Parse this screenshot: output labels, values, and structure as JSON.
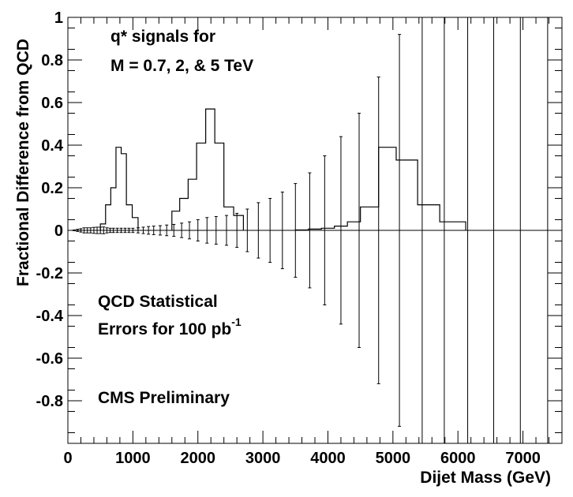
{
  "chart_data": {
    "type": "line",
    "xlabel": "Dijet Mass (GeV)",
    "ylabel": "Fractional Difference from QCD",
    "xlim": [
      0,
      7600
    ],
    "ylim": [
      -1,
      1
    ],
    "x_ticks": [
      0,
      1000,
      2000,
      3000,
      4000,
      5000,
      6000,
      7000
    ],
    "x_tick_labels": [
      "0",
      "1000",
      "2000",
      "3000",
      "4000",
      "5000",
      "6000",
      "7000"
    ],
    "y_ticks": [
      -0.8,
      -0.6,
      -0.4,
      -0.2,
      0,
      0.2,
      0.4,
      0.6,
      0.8,
      1
    ],
    "y_tick_labels": [
      "-0.8",
      "-0.6",
      "-0.4",
      "-0.2",
      "0",
      "0.2",
      "0.4",
      "0.6",
      "0.8",
      "1"
    ],
    "annotations": {
      "signal_line1": "q*  signals  for",
      "signal_line2": "M = 0.7,  2,  &  5 TeV",
      "stat_line1": "QCD Statistical",
      "stat_line2_main": "Errors for 100 pb",
      "stat_line2_sup": "-1",
      "prelim": "CMS Preliminary"
    },
    "series": [
      {
        "type": "histogram",
        "edges": [
          500,
          580,
          660,
          740,
          820,
          900,
          990,
          1080
        ],
        "values": [
          0.03,
          0.12,
          0.2,
          0.39,
          0.36,
          0.12,
          0.06
        ]
      },
      {
        "type": "histogram",
        "edges": [
          1600,
          1720,
          1850,
          1980,
          2120,
          2260,
          2400,
          2550,
          2700
        ],
        "values": [
          0.09,
          0.15,
          0.24,
          0.41,
          0.57,
          0.41,
          0.11,
          0.07
        ]
      },
      {
        "type": "histogram",
        "edges": [
          3500,
          3700,
          3900,
          4100,
          4300,
          4500,
          4780,
          5050,
          5380,
          5720,
          6120
        ],
        "values": [
          0.002,
          0.006,
          0.01,
          0.02,
          0.04,
          0.11,
          0.39,
          0.33,
          0.12,
          0.04
        ]
      },
      {
        "type": "errorbars",
        "x": [
          100,
          150,
          200,
          250,
          300,
          350,
          400,
          450,
          500,
          550,
          600,
          650,
          700,
          760,
          820,
          880,
          940,
          1000,
          1080,
          1160,
          1240,
          1320,
          1420,
          1520,
          1630,
          1750,
          1870,
          2000,
          2140,
          2280,
          2440,
          2600,
          2760,
          2930,
          3110,
          3300,
          3500,
          3720,
          3950,
          4200,
          4480,
          4780,
          5100,
          5450,
          5790,
          6150,
          6550,
          6960,
          7380
        ],
        "err": [
          0.002,
          0.005,
          0.008,
          0.012,
          0.012,
          0.012,
          0.014,
          0.015,
          0.015,
          0.016,
          0.012,
          0.01,
          0.01,
          0.01,
          0.01,
          0.01,
          0.01,
          0.01,
          0.012,
          0.015,
          0.018,
          0.02,
          0.022,
          0.025,
          0.028,
          0.034,
          0.04,
          0.05,
          0.06,
          0.065,
          0.07,
          0.08,
          0.1,
          0.13,
          0.15,
          0.18,
          0.22,
          0.27,
          0.35,
          0.44,
          0.55,
          0.72,
          0.92,
          1.5,
          1.5,
          1.5,
          1.5,
          1.5,
          1.5
        ]
      }
    ]
  }
}
